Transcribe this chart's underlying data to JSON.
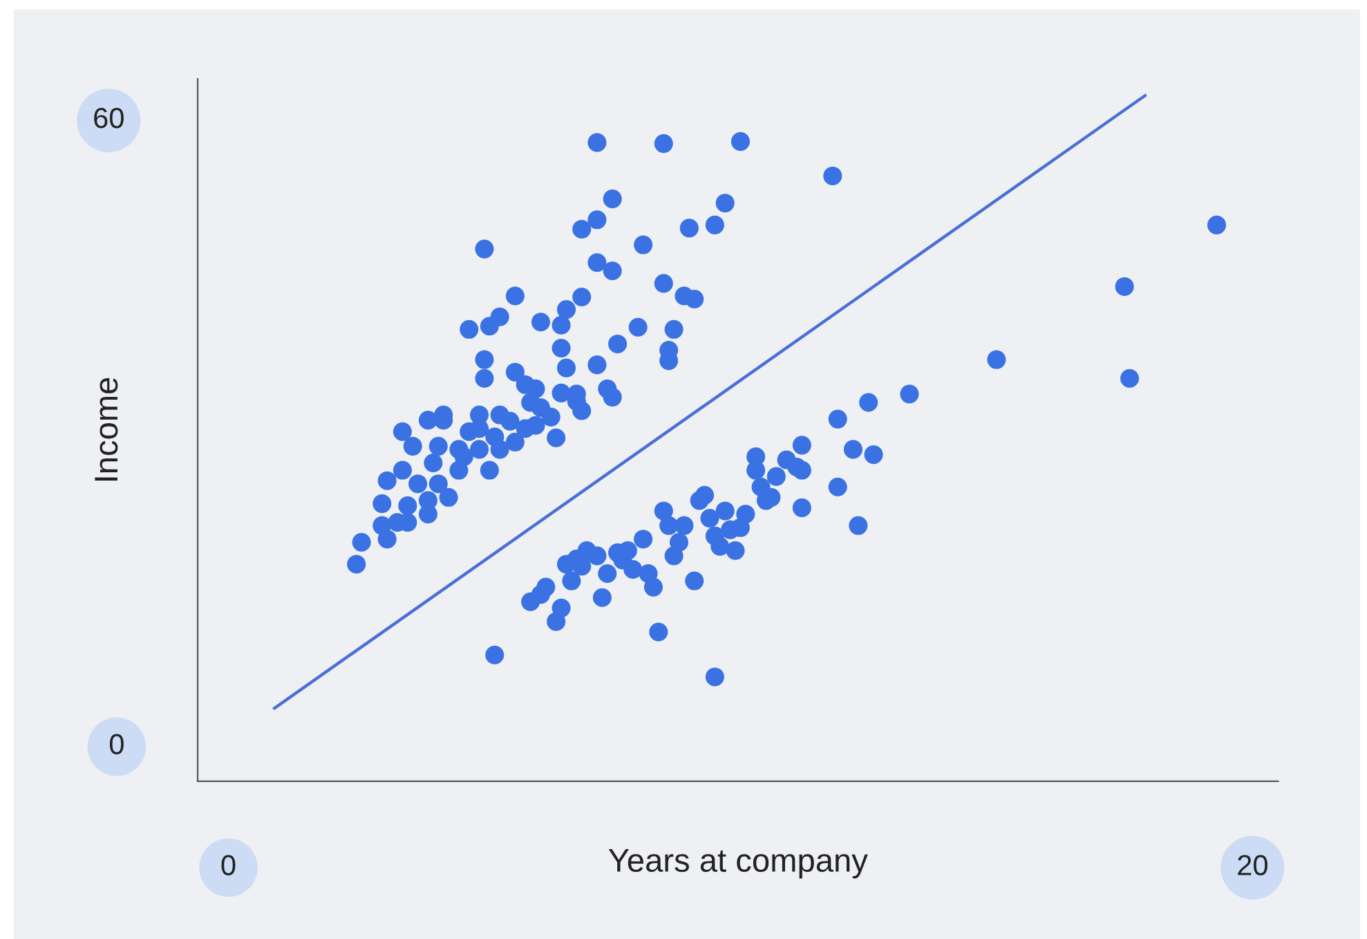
{
  "chart_data": {
    "type": "scatter",
    "xlabel": "Years at company",
    "ylabel": "Income",
    "xlim": [
      -0.6,
      20.5
    ],
    "ylim": [
      -3.6,
      63.7
    ],
    "xticks": [
      0,
      20
    ],
    "yticks": [
      0,
      60
    ],
    "grid": false,
    "marker": "circle",
    "series": [
      {
        "color": "#3b72e3",
        "x": [
          7.2,
          8.5,
          10.0,
          11.8,
          7.5,
          7.2,
          6.9,
          9.0,
          9.5,
          9.7,
          5.0,
          8.1,
          7.2,
          7.5,
          8.5,
          8.9,
          9.1,
          5.6,
          5.3,
          4.7,
          5.1,
          6.1,
          6.5,
          6.6,
          6.9,
          8.0,
          8.7,
          7.6,
          8.6,
          8.6,
          5.0,
          5.0,
          5.6,
          6.5,
          6.6,
          7.2,
          6.0,
          5.8,
          7.4,
          7.5,
          5.9,
          6.1,
          6.5,
          6.9,
          6.3,
          6.4,
          5.3,
          5.5,
          5.2,
          4.9,
          4.7,
          4.5,
          4.2,
          3.9,
          4.2,
          3.4,
          3.6,
          4.1,
          4.0,
          4.5,
          5.1,
          4.6,
          4.9,
          3.4,
          3.1,
          3.7,
          4.1,
          4.3,
          3.9,
          3.5,
          3.0,
          3.3,
          3.5,
          3.9,
          3.0,
          2.6,
          3.1,
          2.5,
          4.9,
          5.8,
          5.3,
          5.6,
          6.0,
          6.8,
          6.8,
          5.2,
          5.9,
          6.1,
          6.2,
          6.4,
          6.5,
          6.6,
          6.7,
          6.9,
          6.8,
          7.0,
          7.2,
          7.3,
          7.4,
          7.6,
          7.7,
          7.8,
          7.9,
          8.1,
          8.2,
          8.3,
          8.4,
          8.5,
          8.6,
          8.7,
          8.8,
          8.9,
          9.1,
          9.2,
          9.3,
          9.4,
          9.5,
          9.5,
          9.6,
          9.7,
          9.8,
          9.9,
          10.0,
          10.1,
          10.3,
          10.3,
          10.4,
          10.5,
          10.6,
          10.7,
          10.9,
          11.1,
          11.2,
          11.2,
          11.2,
          11.9,
          11.9,
          12.2,
          12.3,
          12.5,
          12.6,
          13.3,
          15.0,
          17.5,
          17.6,
          19.3
        ],
        "values": [
          57.6,
          57.5,
          57.7,
          54.4,
          52.2,
          50.2,
          49.3,
          49.4,
          49.7,
          51.8,
          47.4,
          47.8,
          46.1,
          45.3,
          44.1,
          42.9,
          42.6,
          42.9,
          40.9,
          39.7,
          40.0,
          40.4,
          40.1,
          41.6,
          42.8,
          39.9,
          39.7,
          38.3,
          37.7,
          36.7,
          36.8,
          35.0,
          35.6,
          37.9,
          36.0,
          36.3,
          34.0,
          34.4,
          34.0,
          33.2,
          32.7,
          32.2,
          33.6,
          31.9,
          31.3,
          29.3,
          31.5,
          30.9,
          29.4,
          31.5,
          29.9,
          28.2,
          31.5,
          31.0,
          31.0,
          29.9,
          28.5,
          28.5,
          26.9,
          26.2,
          26.2,
          27.5,
          28.2,
          26.2,
          25.2,
          24.9,
          24.9,
          23.6,
          23.3,
          22.8,
          23.0,
          21.2,
          21.2,
          22.0,
          20.9,
          19.3,
          19.6,
          17.2,
          30.2,
          30.2,
          28.2,
          28.9,
          30.5,
          32.8,
          33.5,
          8.5,
          13.6,
          14.3,
          15.0,
          11.7,
          13.0,
          17.2,
          15.6,
          17.0,
          17.7,
          18.5,
          18.0,
          14.0,
          16.3,
          18.3,
          17.6,
          18.5,
          16.7,
          19.6,
          16.3,
          15.0,
          10.7,
          22.3,
          20.9,
          18.0,
          19.3,
          20.9,
          15.6,
          23.3,
          23.8,
          21.6,
          19.9,
          6.4,
          18.9,
          22.3,
          20.5,
          18.5,
          20.7,
          22.0,
          27.5,
          26.2,
          24.6,
          23.3,
          23.6,
          25.6,
          27.2,
          26.5,
          26.2,
          28.6,
          22.6,
          31.1,
          24.6,
          28.2,
          20.9,
          32.7,
          27.7,
          33.5,
          36.8,
          43.8,
          35.0,
          49.7
        ]
      },
      {
        "type": "line",
        "color": "#4a6fd6",
        "line_style": "solid",
        "marker": "none",
        "x": [
          0.9,
          17.9
        ],
        "values": [
          3.4,
          62.1
        ]
      }
    ]
  }
}
